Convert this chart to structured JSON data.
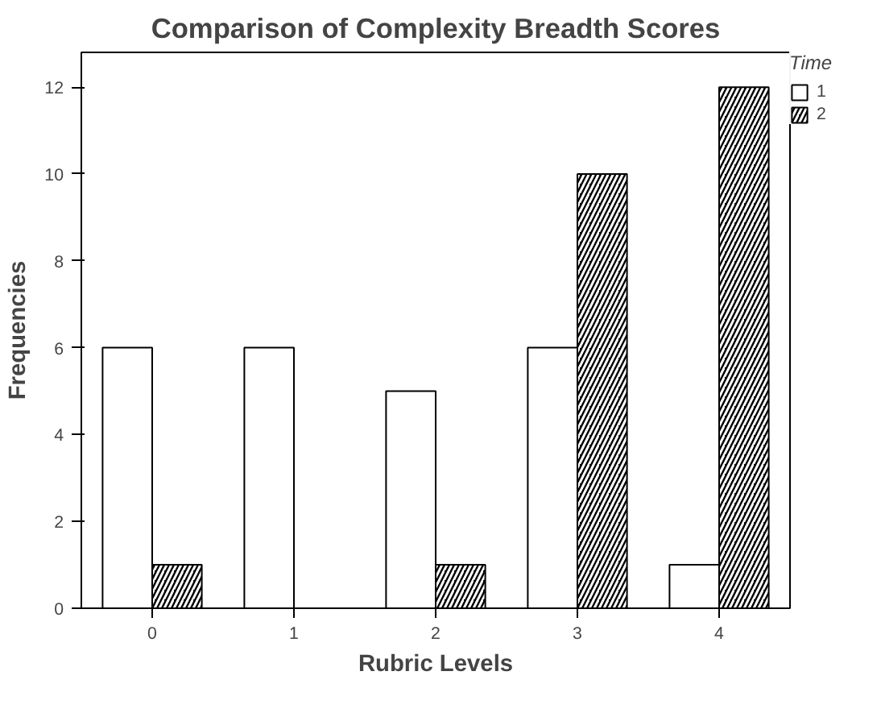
{
  "chart_data": {
    "type": "bar",
    "title": "Comparison of Complexity Breadth Scores",
    "xlabel": "Rubric Levels",
    "ylabel": "Frequencies",
    "legend_title": "Time",
    "categories": [
      "0",
      "1",
      "2",
      "3",
      "4"
    ],
    "series": [
      {
        "name": "1",
        "color": "#ffffff",
        "values": [
          6,
          6,
          5,
          6,
          1
        ]
      },
      {
        "name": "2",
        "color": "#000000",
        "values": [
          1,
          0,
          1,
          10,
          12
        ]
      }
    ],
    "ylim": [
      0,
      12.8
    ],
    "yticks": [
      0,
      2,
      4,
      6,
      8,
      10,
      12
    ],
    "grid": false,
    "legend": "top right"
  }
}
